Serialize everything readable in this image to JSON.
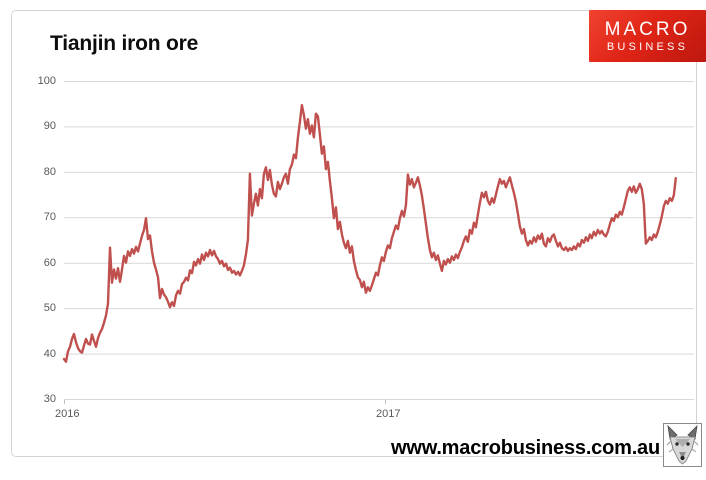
{
  "page": {
    "title": "Tianjin iron ore",
    "footer_url": "www.macrobusiness.com.au"
  },
  "logo": {
    "line1": "MACRO",
    "line2": "BUSINESS",
    "bg_color": "#dc2517",
    "text_color": "#ffffff"
  },
  "chart_data": {
    "type": "line",
    "title": "Tianjin iron ore",
    "line_color": "#c0504d",
    "grid_color": "#d9d9d9",
    "tick_color": "#bfbfbf",
    "label_color": "#595959",
    "grid_on": true,
    "legend": "none",
    "y_axis": {
      "min": 30,
      "max": 100,
      "step": 10,
      "ticks": [
        100,
        90,
        80,
        70,
        60,
        50,
        40,
        30
      ]
    },
    "x_axis": {
      "ticks": [
        {
          "label": "2016",
          "t": 2016
        },
        {
          "label": "2017",
          "t": 2017
        }
      ]
    },
    "t_start": 2016.0,
    "t_end": 2017.906,
    "values": [
      38.8,
      38.2,
      40.5,
      41.5,
      43.2,
      44.3,
      42.5,
      41.2,
      40.5,
      40.2,
      41.8,
      43.2,
      42.2,
      42.0,
      44.2,
      42.8,
      41.5,
      43.4,
      44.6,
      45.4,
      46.8,
      48.4,
      51.0,
      63.3,
      55.6,
      58.5,
      56.5,
      58.8,
      55.8,
      58.5,
      61.5,
      60.0,
      62.5,
      61.5,
      63.0,
      62.0,
      63.5,
      62.5,
      64.2,
      65.9,
      67.2,
      69.8,
      65.2,
      66.0,
      62.5,
      60.0,
      58.5,
      56.8,
      52.2,
      54.2,
      53.0,
      52.4,
      51.4,
      50.2,
      51.3,
      50.5,
      52.8,
      53.8,
      53.2,
      55.3,
      55.8,
      56.7,
      56.1,
      58.3,
      57.7,
      60.2,
      59.4,
      60.8,
      59.8,
      61.8,
      60.6,
      62.2,
      61.4,
      62.8,
      61.6,
      62.6,
      61.4,
      60.8,
      59.8,
      60.4,
      59.2,
      59.8,
      58.4,
      58.9,
      57.8,
      58.2,
      57.4,
      58.0,
      57.2,
      58.2,
      59.4,
      61.8,
      65.0,
      79.6,
      70.4,
      73.0,
      75.2,
      72.6,
      76.2,
      74.2,
      79.5,
      81.0,
      78.2,
      80.4,
      77.2,
      75.2,
      74.6,
      77.8,
      76.2,
      77.4,
      78.8,
      79.6,
      77.4,
      80.6,
      81.6,
      83.8,
      83.0,
      87.5,
      91.0,
      94.7,
      92.5,
      89.5,
      91.6,
      88.4,
      90.2,
      87.6,
      92.8,
      92.2,
      88.2,
      84.0,
      85.6,
      80.6,
      82.2,
      78.0,
      74.2,
      69.8,
      72.2,
      67.4,
      69.0,
      66.2,
      64.4,
      63.2,
      64.8,
      62.2,
      63.6,
      60.4,
      58.4,
      56.8,
      56.2,
      54.6,
      55.8,
      53.4,
      54.6,
      53.8,
      55.0,
      56.4,
      57.8,
      57.2,
      59.4,
      61.2,
      60.4,
      62.4,
      63.8,
      63.2,
      65.4,
      66.8,
      68.2,
      67.4,
      69.8,
      71.4,
      70.2,
      72.6,
      79.4,
      77.2,
      78.4,
      76.6,
      77.6,
      78.8,
      77.0,
      74.8,
      71.8,
      68.6,
      65.4,
      62.8,
      61.2,
      62.2,
      60.6,
      61.6,
      59.8,
      58.2,
      60.4,
      59.6,
      60.8,
      60.0,
      61.4,
      60.6,
      61.8,
      61.0,
      62.4,
      63.4,
      64.8,
      65.8,
      64.6,
      67.2,
      66.4,
      68.8,
      67.8,
      70.6,
      73.2,
      75.4,
      74.4,
      75.6,
      73.6,
      72.8,
      74.2,
      73.2,
      75.0,
      76.8,
      78.4,
      77.4,
      78.0,
      76.6,
      77.8,
      78.8,
      77.0,
      75.4,
      73.4,
      70.8,
      68.0,
      66.4,
      67.4,
      65.0,
      63.8,
      64.8,
      64.2,
      65.6,
      64.6,
      66.0,
      65.2,
      66.4,
      64.2,
      63.6,
      65.4,
      64.6,
      65.8,
      66.2,
      64.8,
      63.6,
      64.4,
      63.2,
      62.8,
      63.4,
      62.6,
      63.2,
      62.8,
      63.6,
      63.0,
      64.2,
      63.6,
      65.0,
      64.4,
      65.6,
      64.8,
      66.2,
      65.4,
      66.8,
      66.0,
      67.2,
      66.4,
      67.0,
      66.2,
      65.8,
      66.8,
      68.4,
      69.8,
      69.2,
      70.6,
      70.0,
      71.2,
      70.6,
      72.2,
      74.0,
      75.8,
      76.6,
      75.6,
      76.8,
      75.4,
      76.2,
      77.4,
      76.2,
      73.0,
      64.2,
      64.8,
      65.6,
      65.0,
      66.2,
      65.6,
      66.8,
      68.4,
      70.2,
      72.4,
      73.6,
      73.0,
      74.2,
      73.6,
      74.8,
      78.6
    ]
  }
}
